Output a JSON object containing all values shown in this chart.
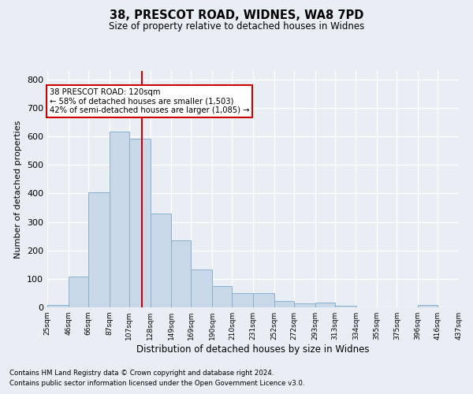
{
  "title1": "38, PRESCOT ROAD, WIDNES, WA8 7PD",
  "title2": "Size of property relative to detached houses in Widnes",
  "xlabel": "Distribution of detached houses by size in Widnes",
  "ylabel": "Number of detached properties",
  "footnote1": "Contains HM Land Registry data © Crown copyright and database right 2024.",
  "footnote2": "Contains public sector information licensed under the Open Government Licence v3.0.",
  "annotation_title": "38 PRESCOT ROAD: 120sqm",
  "annotation_line1": "← 58% of detached houses are smaller (1,503)",
  "annotation_line2": "42% of semi-detached houses are larger (1,085) →",
  "marker_value": 120,
  "bar_edges": [
    25,
    46,
    66,
    87,
    107,
    128,
    149,
    169,
    190,
    210,
    231,
    252,
    272,
    293,
    313,
    334,
    355,
    375,
    396,
    416,
    437
  ],
  "bar_heights": [
    7,
    107,
    403,
    617,
    592,
    328,
    236,
    132,
    76,
    50,
    50,
    23,
    13,
    16,
    5,
    0,
    0,
    0,
    7,
    0,
    0
  ],
  "bar_color": "#c8d8e8",
  "bar_edge_color": "#8ab0cc",
  "marker_color": "#cc0000",
  "background_color": "#e8eef4",
  "grid_color": "#ffffff",
  "annotation_box_color": "#ffffff",
  "annotation_border_color": "#cc0000",
  "ylim": [
    0,
    830
  ],
  "yticks": [
    0,
    100,
    200,
    300,
    400,
    500,
    600,
    700,
    800
  ]
}
